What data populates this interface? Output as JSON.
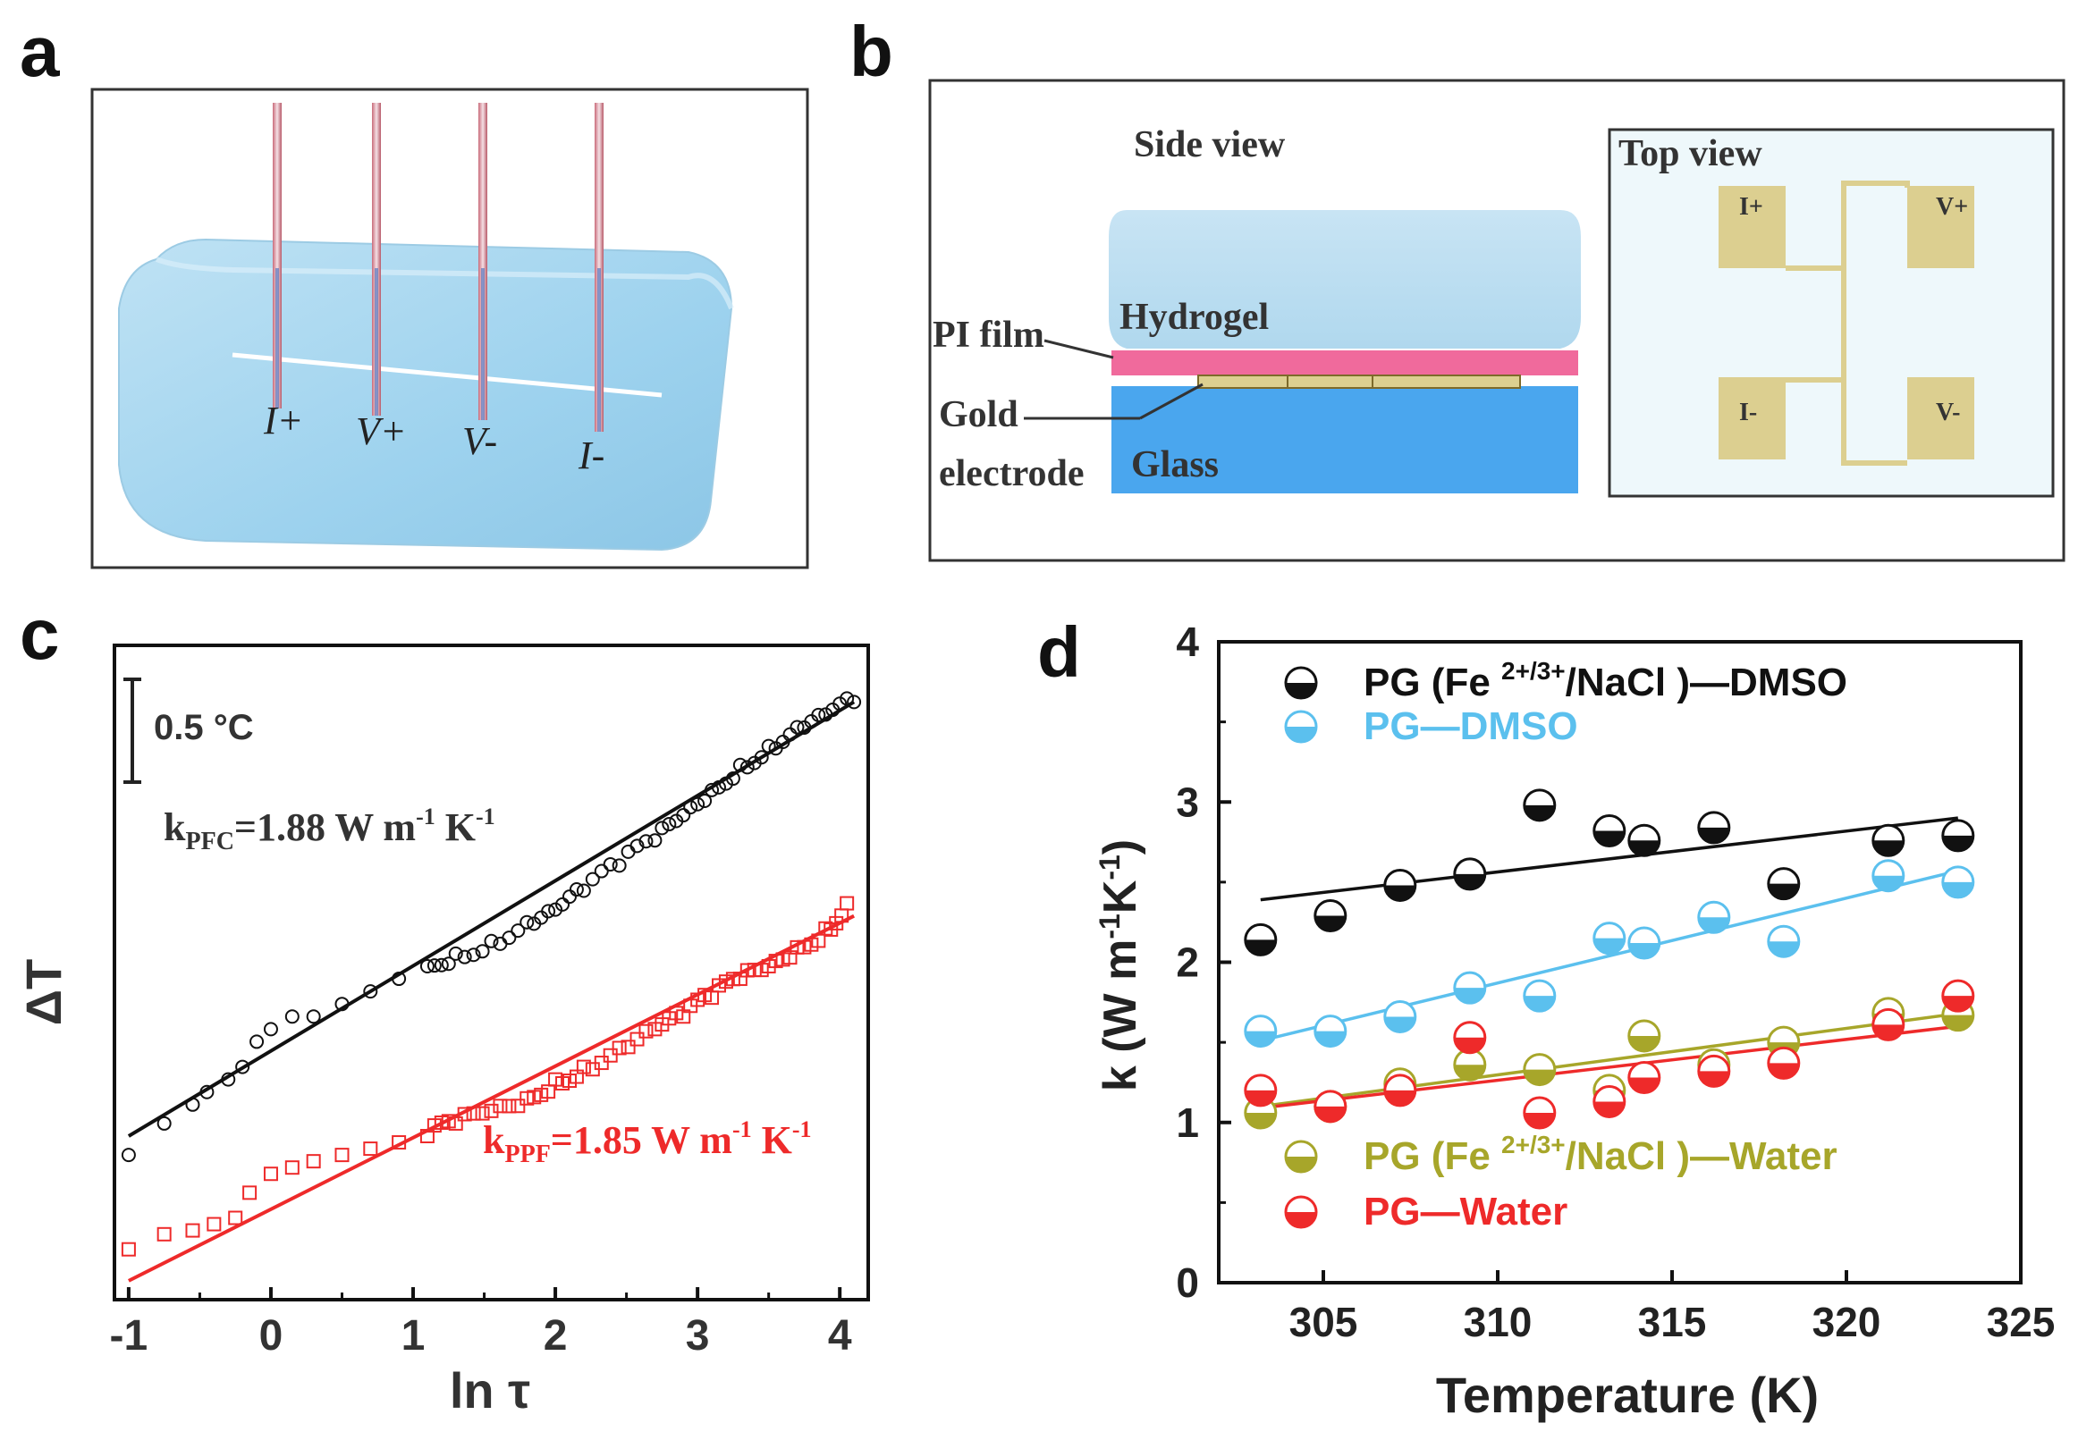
{
  "panels": {
    "a": {
      "letter": "a",
      "labels": [
        "I+",
        "V+",
        "V-",
        "I-"
      ]
    },
    "b": {
      "letter": "b",
      "side_view": "Side view",
      "hydrogel": "Hydrogel",
      "pi_film": "PI film",
      "gold_1": "Gold",
      "gold_2": "electrode",
      "glass": "Glass",
      "top_view": "Top view",
      "pads": [
        "I+",
        "V+",
        "I-",
        "V-"
      ]
    },
    "c": {
      "letter": "c"
    },
    "d": {
      "letter": "d"
    }
  },
  "colors": {
    "black_series": "#111111",
    "blue_series": "#5bc0ee",
    "olive_series": "#a7a62a",
    "red_series": "#ee2a2a",
    "gel_blue": "#a9d8ee",
    "glass_blue": "#4aa6ee",
    "pi_pink": "#f06a9c",
    "gold": "#dccf90"
  },
  "chart_data": [
    {
      "type": "scatter",
      "panel": "c",
      "xlabel": "ln τ",
      "ylabel": "ΔT",
      "xlim": [
        -1.1,
        4.2
      ],
      "xticks": [
        "-1",
        "0",
        "1",
        "2",
        "3",
        "4"
      ],
      "scale_bar": "0.5 °C",
      "ann_pfc": {
        "sym": "k",
        "sub": "PFC",
        "pre": "=1.88 W m",
        "exp1": "-1",
        "mid": " K",
        "exp2": "-1"
      },
      "ann_ppf": {
        "sym": "k",
        "sub": "PPF",
        "pre": "=1.85 W m",
        "exp1": "-1",
        "mid": " K",
        "exp2": "-1"
      },
      "series": [
        {
          "name": "PFC",
          "marker": "circle",
          "color": "#111111",
          "fit": [
            [
              -1.0,
              0.0
            ],
            [
              4.1,
              3.45
            ]
          ],
          "points": [
            [
              -1.0,
              -0.15
            ],
            [
              -0.75,
              0.1
            ],
            [
              -0.55,
              0.25
            ],
            [
              -0.45,
              0.35
            ],
            [
              -0.3,
              0.45
            ],
            [
              -0.2,
              0.55
            ],
            [
              -0.1,
              0.75
            ],
            [
              0.0,
              0.85
            ],
            [
              0.15,
              0.95
            ],
            [
              0.3,
              0.95
            ],
            [
              0.5,
              1.05
            ],
            [
              0.7,
              1.15
            ],
            [
              0.9,
              1.25
            ],
            [
              1.1,
              1.35
            ],
            [
              1.3,
              1.45
            ],
            [
              1.55,
              1.55
            ],
            [
              1.8,
              1.7
            ],
            [
              2.0,
              1.8
            ],
            [
              2.2,
              1.95
            ],
            [
              2.45,
              2.15
            ],
            [
              2.7,
              2.35
            ],
            [
              2.9,
              2.55
            ],
            [
              3.1,
              2.75
            ],
            [
              3.3,
              2.95
            ],
            [
              3.5,
              3.1
            ],
            [
              3.7,
              3.25
            ],
            [
              3.9,
              3.35
            ],
            [
              4.1,
              3.45
            ]
          ]
        },
        {
          "name": "PPF",
          "marker": "square",
          "color": "#ee2a2a",
          "fit": [
            [
              -1.0,
              -1.15
            ],
            [
              4.1,
              1.75
            ]
          ],
          "points": [
            [
              -1.0,
              -0.9
            ],
            [
              -0.75,
              -0.78
            ],
            [
              -0.55,
              -0.75
            ],
            [
              -0.4,
              -0.7
            ],
            [
              -0.25,
              -0.65
            ],
            [
              -0.15,
              -0.45
            ],
            [
              0.0,
              -0.3
            ],
            [
              0.15,
              -0.25
            ],
            [
              0.3,
              -0.2
            ],
            [
              0.5,
              -0.15
            ],
            [
              0.7,
              -0.1
            ],
            [
              0.9,
              -0.05
            ],
            [
              1.1,
              0.0
            ],
            [
              1.3,
              0.1
            ],
            [
              1.55,
              0.2
            ],
            [
              1.8,
              0.3
            ],
            [
              2.0,
              0.45
            ],
            [
              2.2,
              0.55
            ],
            [
              2.45,
              0.7
            ],
            [
              2.7,
              0.85
            ],
            [
              2.9,
              0.95
            ],
            [
              3.1,
              1.1
            ],
            [
              3.3,
              1.25
            ],
            [
              3.5,
              1.35
            ],
            [
              3.7,
              1.5
            ],
            [
              3.9,
              1.65
            ],
            [
              4.05,
              1.85
            ]
          ]
        }
      ]
    },
    {
      "type": "scatter",
      "panel": "d",
      "xlabel": "Temperature (K)",
      "ylabel": "k (W m",
      "ylabel_exp1": "-1",
      "ylabel_mid": "K",
      "ylabel_exp2": "-1",
      "ylabel_close": ")",
      "xlim": [
        302,
        325
      ],
      "ylim": [
        0,
        4
      ],
      "xticks": [
        "305",
        "310",
        "315",
        "320",
        "325"
      ],
      "yticks": [
        "0",
        "1",
        "2",
        "3",
        "4"
      ],
      "legend": [
        {
          "pre": "PG (Fe ",
          "sup": "2+/3+",
          "post": "/NaCl )—DMSO",
          "color": "#111111"
        },
        {
          "pre": "PG—DMSO",
          "sup": "",
          "post": "",
          "color": "#5bc0ee"
        },
        {
          "pre": "PG (Fe ",
          "sup": "2+/3+",
          "post": "/NaCl )—Water",
          "color": "#a7a62a"
        },
        {
          "pre": "PG—Water",
          "sup": "",
          "post": "",
          "color": "#ee2a2a"
        }
      ],
      "series": [
        {
          "name": "PG (Fe2+/3+/NaCl)—DMSO",
          "color": "#111111",
          "x": [
            303.2,
            305.2,
            307.2,
            309.2,
            311.2,
            313.2,
            314.2,
            316.2,
            318.2,
            321.2,
            323.2
          ],
          "y": [
            2.14,
            2.29,
            2.48,
            2.55,
            2.98,
            2.82,
            2.76,
            2.84,
            2.49,
            2.76,
            2.79
          ],
          "fit": [
            [
              303.2,
              2.39
            ],
            [
              323.2,
              2.9
            ]
          ]
        },
        {
          "name": "PG—DMSO",
          "color": "#5bc0ee",
          "x": [
            303.2,
            305.2,
            307.2,
            309.2,
            311.2,
            313.2,
            314.2,
            316.2,
            318.2,
            321.2,
            323.2
          ],
          "y": [
            1.57,
            1.57,
            1.66,
            1.84,
            1.79,
            2.15,
            2.12,
            2.28,
            2.13,
            2.54,
            2.5
          ],
          "fit": [
            [
              303.2,
              1.51
            ],
            [
              323.2,
              2.57
            ]
          ]
        },
        {
          "name": "PG (Fe2+/3+/NaCl)—Water",
          "color": "#a7a62a",
          "x": [
            303.2,
            305.2,
            307.2,
            309.2,
            311.2,
            313.2,
            314.2,
            316.2,
            318.2,
            321.2,
            323.2
          ],
          "y": [
            1.06,
            1.1,
            1.24,
            1.36,
            1.33,
            1.2,
            1.54,
            1.36,
            1.5,
            1.68,
            1.67
          ],
          "fit": [
            [
              303.2,
              1.1
            ],
            [
              323.2,
              1.68
            ]
          ]
        },
        {
          "name": "PG—Water",
          "color": "#ee2a2a",
          "x": [
            303.2,
            305.2,
            307.2,
            309.2,
            311.2,
            313.2,
            314.2,
            316.2,
            318.2,
            321.2,
            323.2
          ],
          "y": [
            1.2,
            1.1,
            1.2,
            1.53,
            1.06,
            1.13,
            1.28,
            1.32,
            1.37,
            1.61,
            1.79
          ],
          "fit": [
            [
              303.2,
              1.09
            ],
            [
              323.2,
              1.6
            ]
          ]
        }
      ]
    }
  ]
}
